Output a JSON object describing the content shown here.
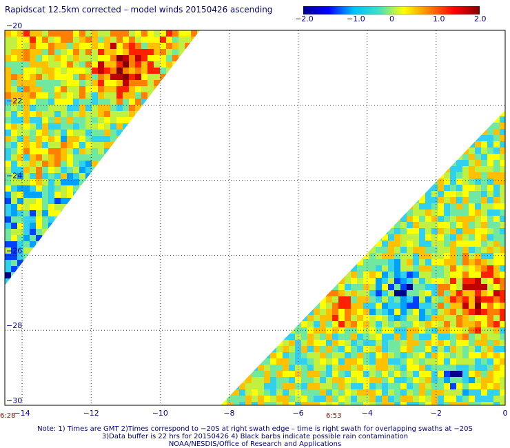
{
  "title": "Rapidscat 12.5km corrected – model winds 20150426 ascending",
  "colorbar": {
    "labels": [
      "−2.0",
      "−1.0",
      "0",
      "1.0",
      "2.0"
    ],
    "stops": [
      "#00008b",
      "#0000ff",
      "#00c0ff",
      "#40e0c0",
      "#ffff00",
      "#ff8000",
      "#ff0000",
      "#800000"
    ]
  },
  "map": {
    "x_ticks": [
      "−14",
      "−12",
      "−10",
      "−8",
      "−6",
      "−4",
      "−2",
      "0"
    ],
    "y_ticks": [
      "−20",
      "−22",
      "−24",
      "−26",
      "−28",
      "−30"
    ],
    "x_range": [
      -14.5,
      0
    ],
    "y_range": [
      -30,
      -20
    ],
    "gridlines": "dotted",
    "palette": [
      "#00008b",
      "#0040ff",
      "#00a0ff",
      "#30d0f0",
      "#70e8a0",
      "#c0f040",
      "#ffff00",
      "#ffc000",
      "#ff8000",
      "#ff2000",
      "#c00000",
      "#800000"
    ]
  },
  "swath_times": [
    "6:28",
    "6:53"
  ],
  "notes": [
    "Note: 1) Times are GMT 2)Times correspond to −20S at right swath edge – time is right swath for overlapping swaths at −20S",
    "3)Data buffer is 22 hrs for 20150426 4) Black barbs indicate possible rain contamination",
    "NOAA/NESDIS/Office of Research and Applications"
  ]
}
